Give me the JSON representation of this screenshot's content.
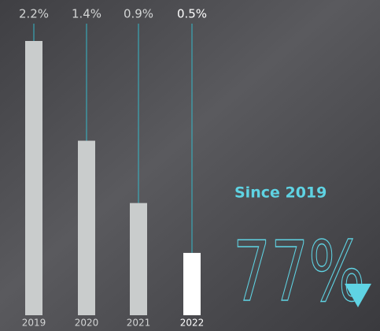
{
  "chart_data": {
    "type": "bar",
    "categories": [
      "2019",
      "2020",
      "2021",
      "2022"
    ],
    "values": [
      2.2,
      1.4,
      0.9,
      0.5
    ],
    "value_labels": [
      "2.2%",
      "1.4%",
      "0.9%",
      "0.5%"
    ],
    "colors": [
      "#c9cccc",
      "#c9cccc",
      "#c9cccc",
      "#ffffff"
    ],
    "label_colors": [
      "#d2d4d4",
      "#d2d4d4",
      "#d2d4d4",
      "#ffffff"
    ],
    "leader_color": "#35b8c9",
    "annotations": [
      "Since 2019",
      "77%"
    ],
    "accent_color": "#5fd3e3"
  }
}
